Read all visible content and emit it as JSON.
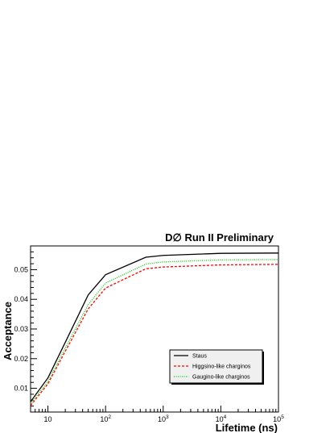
{
  "chart_data": {
    "type": "line",
    "title": "D∅ Run II Preliminary",
    "xlabel": "Lifetime (ns)",
    "ylabel": "Acceptance",
    "xscale": "log",
    "xlim": [
      5,
      100000
    ],
    "ylim": [
      0.002,
      0.058
    ],
    "x_ticks": [
      {
        "value": 10,
        "label": "10"
      },
      {
        "value": 100,
        "base": "10",
        "exp": "2"
      },
      {
        "value": 1000,
        "base": "10",
        "exp": "3"
      },
      {
        "value": 10000,
        "base": "10",
        "exp": "4"
      },
      {
        "value": 100000,
        "base": "10",
        "exp": "5"
      }
    ],
    "y_ticks": [
      {
        "value": 0.01,
        "label": "0.01"
      },
      {
        "value": 0.02,
        "label": "0.02"
      },
      {
        "value": 0.03,
        "label": "0.03"
      },
      {
        "value": 0.04,
        "label": "0.04"
      },
      {
        "value": 0.05,
        "label": "0.05"
      }
    ],
    "grid": false,
    "legend_position": "bottom-right",
    "x": [
      5,
      10,
      20,
      50,
      100,
      500,
      1000,
      10000,
      100000
    ],
    "series": [
      {
        "name": "Staus",
        "color": "#000000",
        "dash": "solid",
        "values": [
          0.0055,
          0.0135,
          0.0255,
          0.0415,
          0.0483,
          0.0542,
          0.0548,
          0.0555,
          0.0556
        ]
      },
      {
        "name": "Higgsino-like charginos",
        "color": "#ff0000",
        "dash": "dashed",
        "values": [
          0.0042,
          0.0115,
          0.0225,
          0.0368,
          0.0438,
          0.0503,
          0.0509,
          0.0516,
          0.0518
        ]
      },
      {
        "name": "Gaugino-like charginos",
        "color": "#00cc00",
        "dash": "dotted",
        "values": [
          0.0048,
          0.0122,
          0.0236,
          0.0382,
          0.0455,
          0.0519,
          0.0526,
          0.0533,
          0.0534
        ]
      }
    ]
  }
}
